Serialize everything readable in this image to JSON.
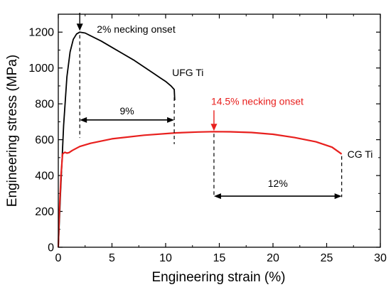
{
  "chart_data": {
    "type": "line",
    "xlabel": "Engineering strain (%)",
    "ylabel": "Engineering stress (MPa)",
    "xlim": [
      0,
      30
    ],
    "ylim": [
      0,
      1300
    ],
    "xticks": [
      0,
      5,
      10,
      15,
      20,
      25,
      30
    ],
    "yticks": [
      0,
      200,
      400,
      600,
      800,
      1000,
      1200
    ],
    "grid": false,
    "colors": {
      "ufg": "#000000",
      "cg": "#e8201e"
    },
    "series": [
      {
        "name": "UFG Ti",
        "x": [
          0.0,
          0.2,
          0.5,
          0.8,
          1.1,
          1.4,
          1.7,
          2.0,
          2.5,
          3.0,
          4.0,
          5.0,
          6.0,
          7.0,
          8.0,
          9.0,
          9.5,
          10.0,
          10.5,
          10.8,
          10.85
        ],
        "y": [
          0,
          290,
          680,
          950,
          1090,
          1160,
          1190,
          1200,
          1195,
          1180,
          1150,
          1115,
          1080,
          1045,
          1005,
          965,
          945,
          925,
          900,
          880,
          820
        ]
      },
      {
        "name": "CG Ti",
        "x": [
          0.0,
          0.1,
          0.25,
          0.4,
          0.6,
          0.8,
          1.0,
          1.3,
          2.0,
          3.0,
          5.0,
          8.0,
          11.0,
          13.0,
          14.5,
          16.0,
          18.0,
          20.0,
          22.0,
          24.0,
          25.5,
          26.4
        ],
        "y": [
          0,
          200,
          400,
          520,
          530,
          525,
          528,
          540,
          562,
          580,
          605,
          625,
          638,
          643,
          645,
          644,
          640,
          630,
          612,
          588,
          558,
          520
        ]
      }
    ],
    "annotations": {
      "ufg_necking": {
        "text": "2% necking onset",
        "x": 2.0
      },
      "ufg_label": {
        "text": "UFG Ti"
      },
      "ufg_span": {
        "text": "9%",
        "x_start": 2.0,
        "x_end": 10.8
      },
      "cg_necking": {
        "text": "14.5% necking onset",
        "x": 14.5
      },
      "cg_label": {
        "text": "CG Ti"
      },
      "cg_span": {
        "text": "12%",
        "x_start": 14.5,
        "x_end": 26.4
      }
    }
  }
}
